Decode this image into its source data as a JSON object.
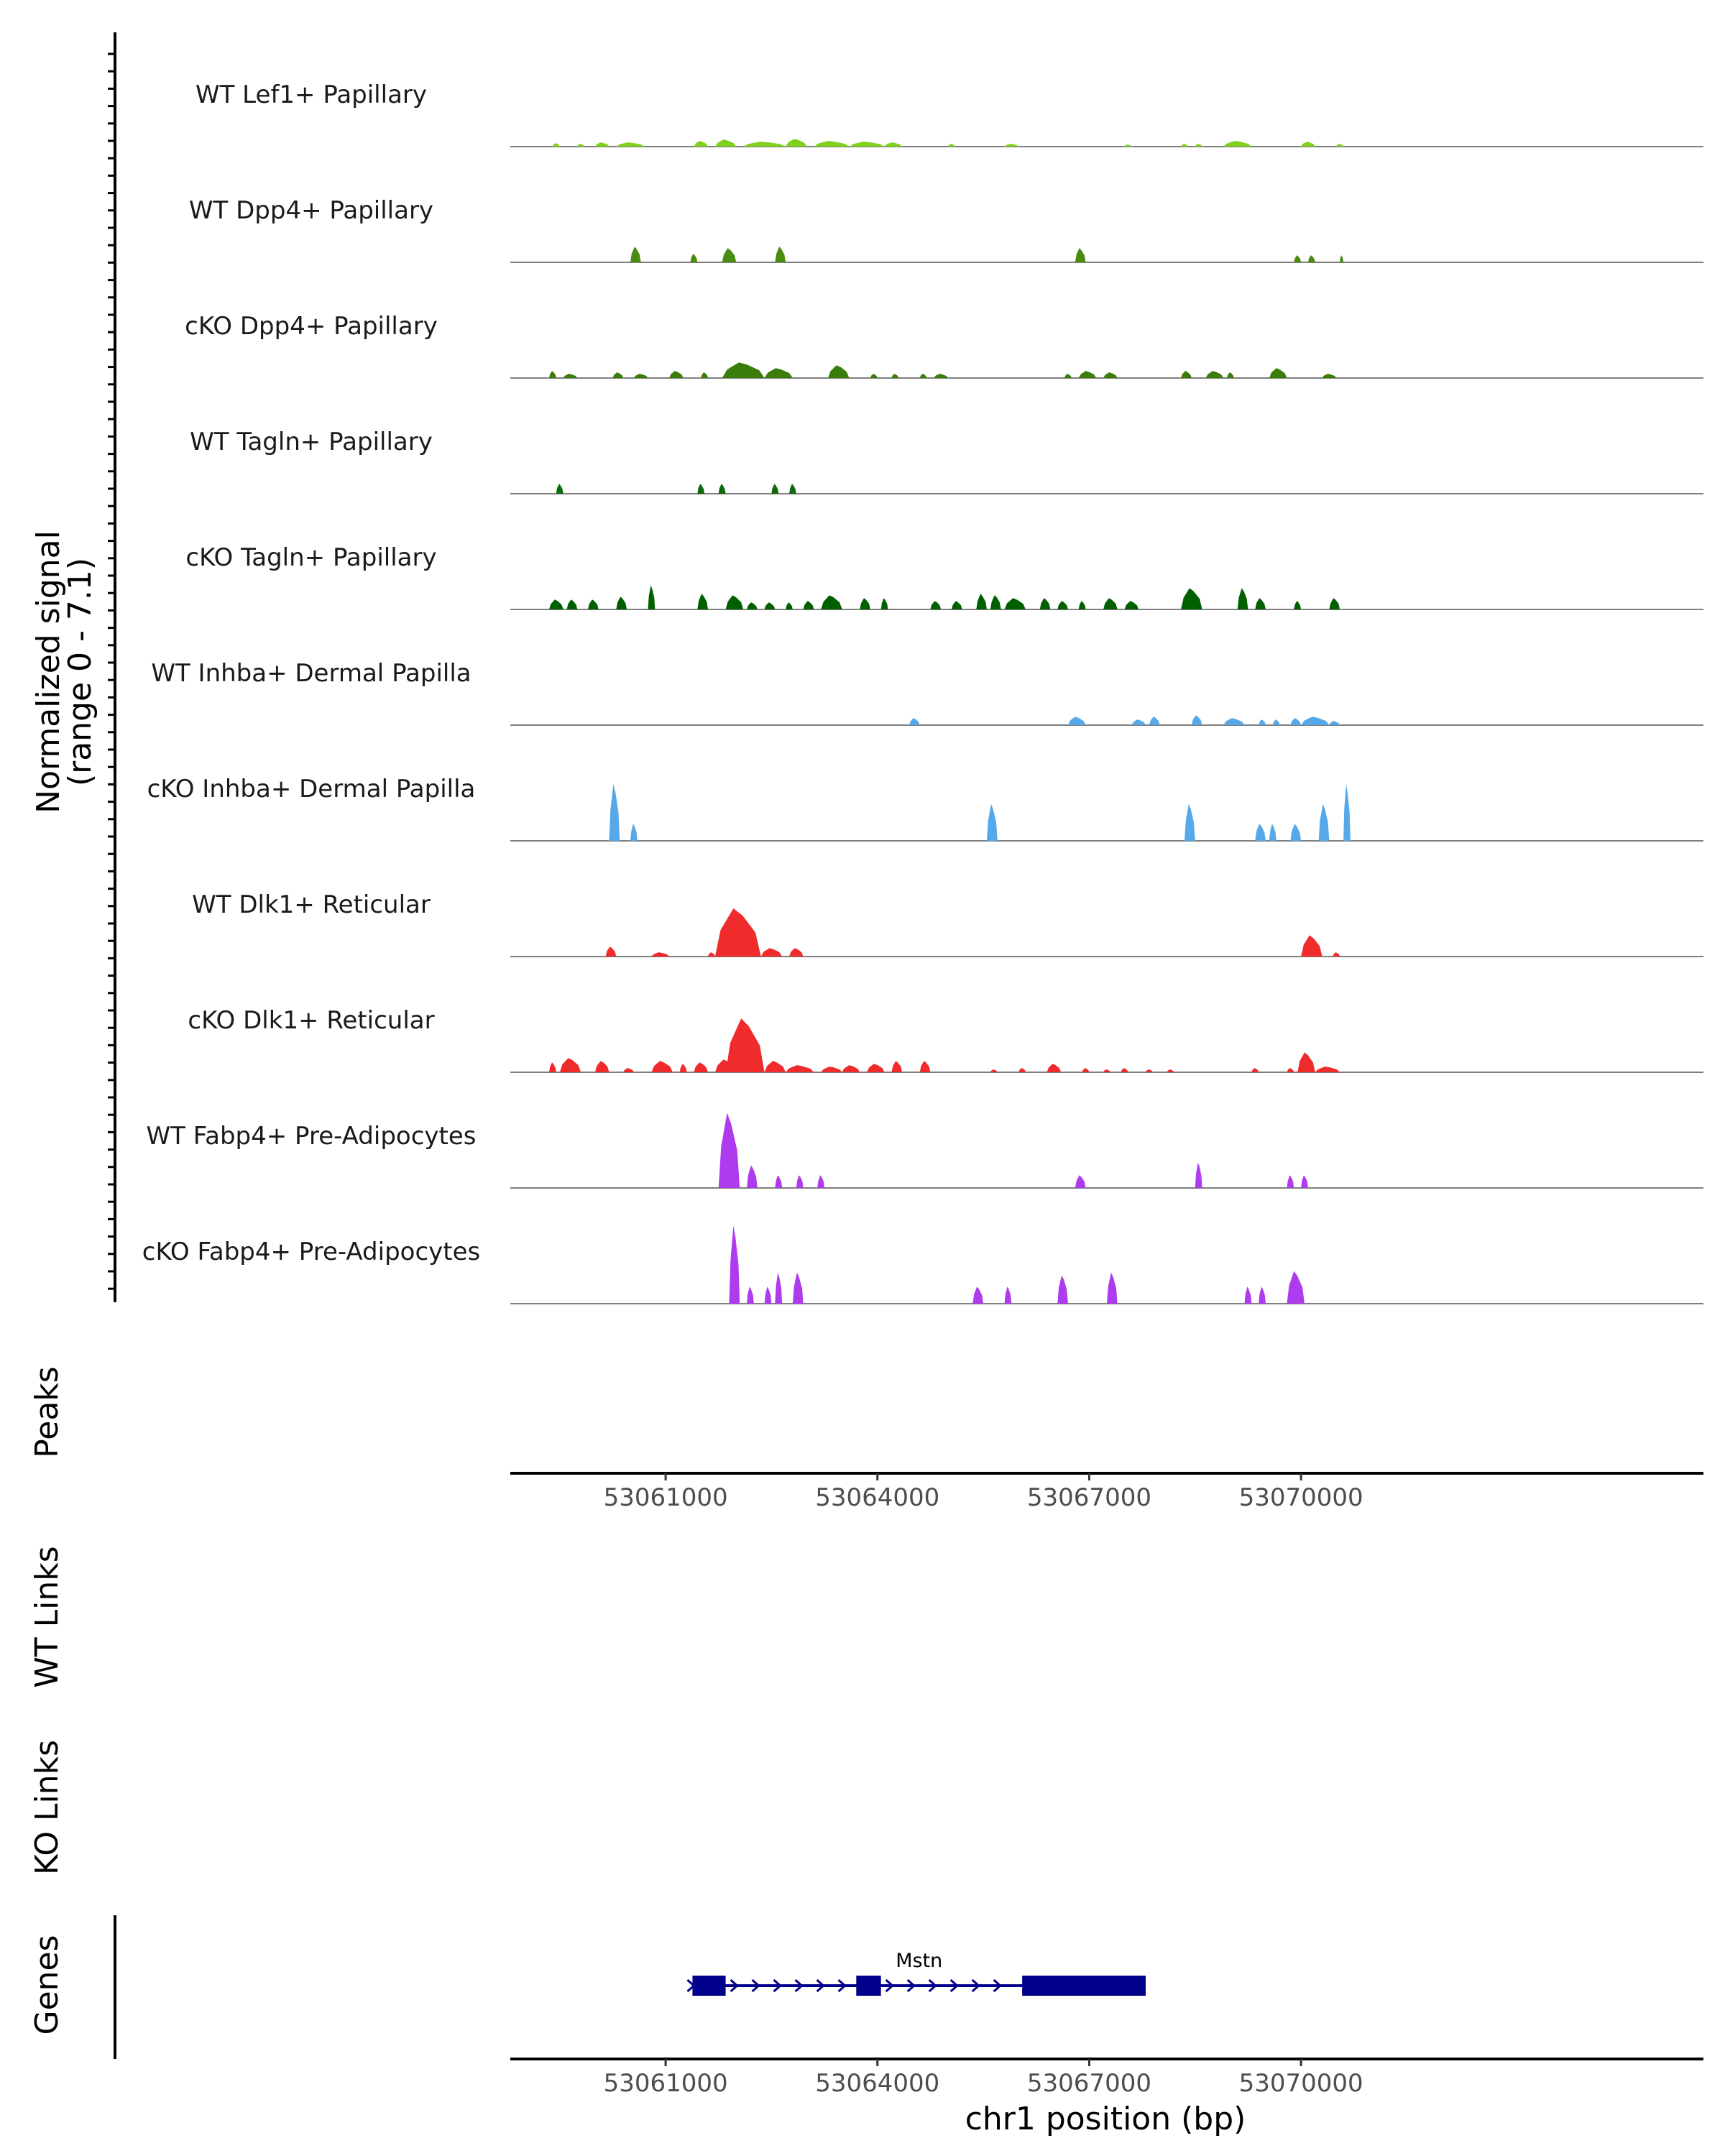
{
  "chart_data": {
    "type": "area",
    "title": "",
    "xlabel": "chr1 position (bp)",
    "ylabel": "Normalized signal\n(range 0 - 7.1)",
    "ylabel_lines": [
      "Normalized signal",
      "(range 0 - 7.1)"
    ],
    "ylim": [
      0,
      7.1
    ],
    "xlim": [
      53058800,
      53075700
    ],
    "grid": false,
    "x_ticks": [
      53061000,
      53064000,
      53067000,
      53070000
    ],
    "x_tick_labels": [
      "53061000",
      "53064000",
      "53067000",
      "53070000"
    ],
    "panels": {
      "peaks": "Peaks",
      "wt_links": "WT Links",
      "ko_links": "KO Links",
      "genes": "Genes"
    },
    "series": [
      {
        "name": "WT Lef1+ Papillary",
        "color": "#7FD11B",
        "peaks": [
          [
            53059400,
            53059500,
            0.25
          ],
          [
            53059750,
            53059850,
            0.2
          ],
          [
            53060000,
            53060200,
            0.3
          ],
          [
            53060300,
            53060700,
            0.3
          ],
          [
            53061400,
            53061600,
            0.4
          ],
          [
            53061700,
            53062000,
            0.5
          ],
          [
            53062100,
            53062700,
            0.35
          ],
          [
            53062700,
            53063000,
            0.55
          ],
          [
            53063100,
            53063600,
            0.4
          ],
          [
            53063600,
            53064100,
            0.35
          ],
          [
            53064100,
            53064350,
            0.3
          ],
          [
            53065000,
            53065100,
            0.2
          ],
          [
            53065800,
            53066000,
            0.2
          ],
          [
            53067500,
            53067600,
            0.15
          ],
          [
            53068300,
            53068400,
            0.2
          ],
          [
            53068500,
            53068600,
            0.2
          ],
          [
            53068900,
            53069300,
            0.4
          ],
          [
            53070000,
            53070200,
            0.35
          ],
          [
            53070500,
            53070600,
            0.2
          ]
        ]
      },
      {
        "name": "WT Dpp4+ Papillary",
        "color": "#4A8C0F",
        "peaks": [
          [
            53060500,
            53060650,
            1.1
          ],
          [
            53061350,
            53061450,
            0.6
          ],
          [
            53061800,
            53062000,
            1.0
          ],
          [
            53062550,
            53062700,
            1.1
          ],
          [
            53066800,
            53066950,
            1.0
          ],
          [
            53069900,
            53070000,
            0.5
          ],
          [
            53070100,
            53070200,
            0.5
          ],
          [
            53070550,
            53070600,
            0.5
          ]
        ]
      },
      {
        "name": "cKO Dpp4+ Papillary",
        "color": "#3A7D0A",
        "peaks": [
          [
            53059350,
            53059450,
            0.5
          ],
          [
            53059550,
            53059750,
            0.3
          ],
          [
            53060250,
            53060400,
            0.4
          ],
          [
            53060550,
            53060750,
            0.3
          ],
          [
            53061050,
            53061250,
            0.5
          ],
          [
            53061500,
            53061600,
            0.4
          ],
          [
            53061800,
            53062400,
            1.1
          ],
          [
            53062400,
            53062800,
            0.7
          ],
          [
            53063300,
            53063600,
            0.9
          ],
          [
            53063900,
            53064000,
            0.3
          ],
          [
            53064200,
            53064300,
            0.3
          ],
          [
            53064600,
            53064700,
            0.3
          ],
          [
            53064800,
            53065000,
            0.3
          ],
          [
            53066650,
            53066750,
            0.3
          ],
          [
            53066850,
            53067100,
            0.5
          ],
          [
            53067200,
            53067400,
            0.4
          ],
          [
            53068300,
            53068450,
            0.5
          ],
          [
            53068650,
            53068900,
            0.5
          ],
          [
            53068950,
            53069050,
            0.4
          ],
          [
            53069550,
            53069800,
            0.7
          ],
          [
            53070300,
            53070500,
            0.3
          ]
        ]
      },
      {
        "name": "WT Tagln+ Papillary",
        "color": "#0D6B0D",
        "peaks": [
          [
            53059450,
            53059550,
            0.7
          ],
          [
            53061450,
            53061550,
            0.7
          ],
          [
            53061750,
            53061850,
            0.7
          ],
          [
            53062500,
            53062600,
            0.7
          ],
          [
            53062750,
            53062850,
            0.7
          ]
        ]
      },
      {
        "name": "cKO Tagln+ Papillary",
        "color": "#006000",
        "peaks": [
          [
            53059350,
            53059550,
            0.7
          ],
          [
            53059600,
            53059750,
            0.7
          ],
          [
            53059900,
            53060050,
            0.7
          ],
          [
            53060300,
            53060450,
            0.9
          ],
          [
            53060750,
            53060850,
            1.7
          ],
          [
            53061450,
            53061600,
            1.1
          ],
          [
            53061850,
            53062100,
            1.0
          ],
          [
            53062150,
            53062300,
            0.5
          ],
          [
            53062400,
            53062550,
            0.5
          ],
          [
            53062700,
            53062800,
            0.5
          ],
          [
            53062950,
            53063100,
            0.6
          ],
          [
            53063200,
            53063500,
            1.0
          ],
          [
            53063750,
            53063900,
            0.8
          ],
          [
            53064050,
            53064150,
            0.8
          ],
          [
            53064750,
            53064900,
            0.6
          ],
          [
            53065050,
            53065200,
            0.6
          ],
          [
            53065400,
            53065550,
            1.1
          ],
          [
            53065600,
            53065750,
            1.0
          ],
          [
            53065800,
            53066100,
            0.8
          ],
          [
            53066300,
            53066450,
            0.8
          ],
          [
            53066550,
            53066700,
            0.6
          ],
          [
            53066850,
            53066950,
            0.6
          ],
          [
            53067200,
            53067400,
            0.8
          ],
          [
            53067500,
            53067700,
            0.6
          ],
          [
            53068300,
            53068600,
            1.5
          ],
          [
            53069100,
            53069250,
            1.5
          ],
          [
            53069350,
            53069500,
            0.8
          ],
          [
            53069900,
            53070000,
            0.6
          ],
          [
            53070400,
            53070550,
            0.8
          ]
        ]
      },
      {
        "name": "WT Inhba+ Dermal Papilla",
        "color": "#56A8E8",
        "peaks": [
          [
            53064450,
            53064600,
            0.5
          ],
          [
            53066700,
            53066950,
            0.6
          ],
          [
            53067600,
            53067800,
            0.4
          ],
          [
            53067850,
            53068000,
            0.6
          ],
          [
            53068450,
            53068600,
            0.7
          ],
          [
            53068900,
            53069200,
            0.5
          ],
          [
            53069400,
            53069500,
            0.4
          ],
          [
            53069600,
            53069700,
            0.4
          ],
          [
            53069850,
            53070000,
            0.5
          ],
          [
            53070000,
            53070400,
            0.6
          ],
          [
            53070400,
            53070550,
            0.3
          ]
        ]
      },
      {
        "name": "cKO Inhba+ Dermal Papilla",
        "color": "#56A8E8",
        "peaks": [
          [
            53060200,
            53060350,
            4.0
          ],
          [
            53060500,
            53060600,
            1.2
          ],
          [
            53065550,
            53065700,
            2.6
          ],
          [
            53068350,
            53068500,
            2.6
          ],
          [
            53069350,
            53069500,
            1.2
          ],
          [
            53069550,
            53069650,
            1.2
          ],
          [
            53069850,
            53070000,
            1.2
          ],
          [
            53070250,
            53070400,
            2.6
          ],
          [
            53070600,
            53070700,
            4.0
          ]
        ]
      },
      {
        "name": "WT Dlk1+ Reticular",
        "color": "#F02B2B",
        "peaks": [
          [
            53060150,
            53060300,
            0.7
          ],
          [
            53060800,
            53061050,
            0.3
          ],
          [
            53061600,
            53061700,
            0.3
          ],
          [
            53061700,
            53062350,
            3.4
          ],
          [
            53062350,
            53062650,
            0.6
          ],
          [
            53062750,
            53062950,
            0.6
          ],
          [
            53070000,
            53070300,
            1.5
          ],
          [
            53070450,
            53070550,
            0.3
          ]
        ]
      },
      {
        "name": "cKO Dlk1+ Reticular",
        "color": "#F02B2B",
        "peaks": [
          [
            53059350,
            53059450,
            0.7
          ],
          [
            53059500,
            53059800,
            1.0
          ],
          [
            53060000,
            53060200,
            0.8
          ],
          [
            53060400,
            53060550,
            0.3
          ],
          [
            53060800,
            53061100,
            0.8
          ],
          [
            53061200,
            53061300,
            0.6
          ],
          [
            53061400,
            53061600,
            0.7
          ],
          [
            53061700,
            53062000,
            0.9
          ],
          [
            53061850,
            53062400,
            3.8
          ],
          [
            53062400,
            53062700,
            0.8
          ],
          [
            53062700,
            53063100,
            0.5
          ],
          [
            53063200,
            53063500,
            0.4
          ],
          [
            53063500,
            53063750,
            0.5
          ],
          [
            53063850,
            53064100,
            0.6
          ],
          [
            53064200,
            53064350,
            0.8
          ],
          [
            53064600,
            53064750,
            0.8
          ],
          [
            53065600,
            53065700,
            0.2
          ],
          [
            53066000,
            53066100,
            0.3
          ],
          [
            53066400,
            53066600,
            0.6
          ],
          [
            53066900,
            53067000,
            0.3
          ],
          [
            53067200,
            53067300,
            0.2
          ],
          [
            53067450,
            53067550,
            0.3
          ],
          [
            53067800,
            53067900,
            0.2
          ],
          [
            53068100,
            53068200,
            0.2
          ],
          [
            53069300,
            53069400,
            0.3
          ],
          [
            53069800,
            53069900,
            0.3
          ],
          [
            53069950,
            53070200,
            1.4
          ],
          [
            53070200,
            53070550,
            0.4
          ]
        ]
      },
      {
        "name": "WT Fabp4+ Pre-Adipocytes",
        "color": "#AF3BEE",
        "peaks": [
          [
            53061750,
            53062050,
            5.3
          ],
          [
            53062150,
            53062300,
            1.6
          ],
          [
            53062550,
            53062650,
            0.9
          ],
          [
            53062850,
            53062950,
            0.9
          ],
          [
            53063150,
            53063250,
            0.9
          ],
          [
            53066800,
            53066950,
            0.9
          ],
          [
            53068500,
            53068600,
            1.8
          ],
          [
            53069800,
            53069900,
            0.9
          ],
          [
            53070000,
            53070100,
            0.9
          ]
        ]
      },
      {
        "name": "cKO Fabp4+ Pre-Adipocytes",
        "color": "#AF3BEE",
        "peaks": [
          [
            53061900,
            53062050,
            5.5
          ],
          [
            53062150,
            53062250,
            1.2
          ],
          [
            53062400,
            53062500,
            1.2
          ],
          [
            53062550,
            53062650,
            2.2
          ],
          [
            53062800,
            53062950,
            2.2
          ],
          [
            53065350,
            53065500,
            1.2
          ],
          [
            53065800,
            53065900,
            1.2
          ],
          [
            53066550,
            53066700,
            2.0
          ],
          [
            53067250,
            53067400,
            2.2
          ],
          [
            53069200,
            53069300,
            1.2
          ],
          [
            53069400,
            53069500,
            1.2
          ],
          [
            53069800,
            53070050,
            2.3
          ]
        ]
      }
    ],
    "genes": [
      {
        "name": "Mstn",
        "color": "#00008B",
        "start": 53061380,
        "end": 53067800,
        "strand": "+",
        "exons": [
          [
            53061380,
            53061850
          ],
          [
            53063700,
            53064050
          ],
          [
            53066050,
            53067800
          ]
        ]
      }
    ]
  }
}
